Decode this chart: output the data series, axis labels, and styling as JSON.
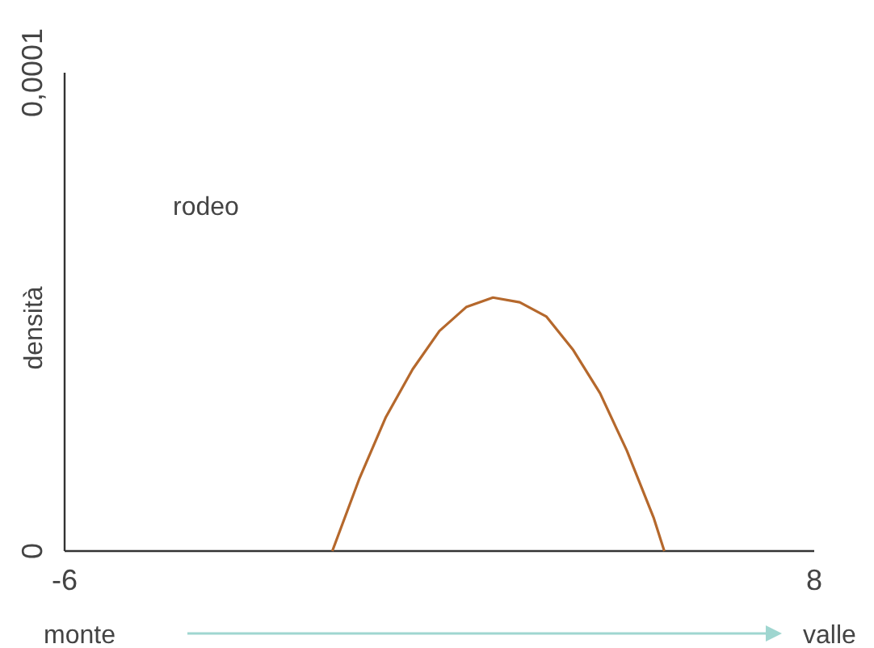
{
  "chart_data": {
    "type": "line",
    "ylabel": "densità",
    "x": [
      -1,
      -0.5,
      0,
      0.5,
      1,
      1.5,
      2,
      2.5,
      3,
      3.5,
      4,
      4.5,
      5,
      5.2
    ],
    "series": [
      {
        "color": "#b5682c",
        "values": [
          0,
          1.5e-05,
          2.8e-05,
          3.8e-05,
          4.6e-05,
          5.1e-05,
          5.3e-05,
          5.2e-05,
          4.9e-05,
          4.2e-05,
          3.3e-05,
          2.1e-05,
          7e-06,
          0
        ]
      }
    ],
    "xlim": [
      -6,
      8
    ],
    "xticks": [
      -6,
      8
    ],
    "ylim": [
      0,
      0.0001
    ],
    "yticks": [
      0,
      {
        "value": 0.0001,
        "label": "0,0001"
      }
    ],
    "annotations": [
      "rodeo",
      "monte",
      "valle"
    ],
    "grid": false,
    "marker": "none",
    "line_style": "solid"
  }
}
